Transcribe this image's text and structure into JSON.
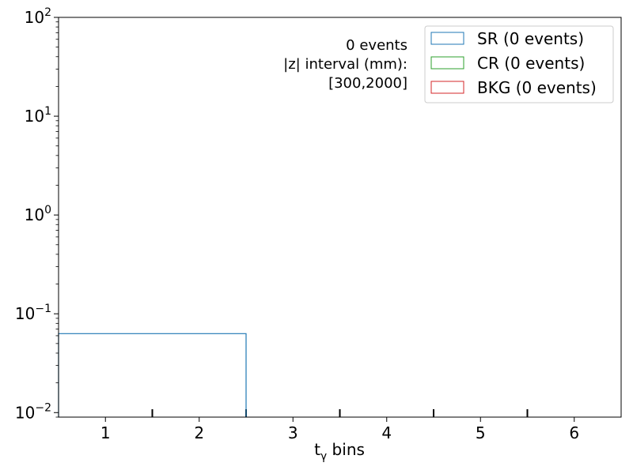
{
  "chart_data": {
    "type": "step-histogram",
    "xlabel": {
      "main": "t",
      "sub": "γ",
      "rest": " bins"
    },
    "yscale": "log",
    "xlim": [
      0.5,
      6.5
    ],
    "ylim": [
      0.009,
      100
    ],
    "x_ticks": [
      1,
      2,
      3,
      4,
      5,
      6
    ],
    "x_bin_edges": [
      1.5,
      2.5,
      3.5,
      4.5,
      5.5
    ],
    "y_ticks": [
      {
        "value": 0.01,
        "base": "10",
        "exp": "−2"
      },
      {
        "value": 0.1,
        "base": "10",
        "exp": "−1"
      },
      {
        "value": 1,
        "base": "10",
        "exp": "0"
      },
      {
        "value": 10,
        "base": "10",
        "exp": "1"
      },
      {
        "value": 100,
        "base": "10",
        "exp": "2"
      }
    ],
    "series": [
      {
        "name": "SR (0 events)",
        "color": "#1f77b4",
        "edges": [
          0.5,
          2.5
        ],
        "values": [
          0.063
        ]
      },
      {
        "name": "CR (0 events)",
        "color": "#2ca02c",
        "edges": [],
        "values": []
      },
      {
        "name": "BKG (0 events)",
        "color": "#d62728",
        "edges": [],
        "values": []
      }
    ],
    "annotation": [
      "0 events",
      "|z| interval (mm):",
      "[300,2000]"
    ],
    "legend_position": "top-right",
    "grid": false
  }
}
